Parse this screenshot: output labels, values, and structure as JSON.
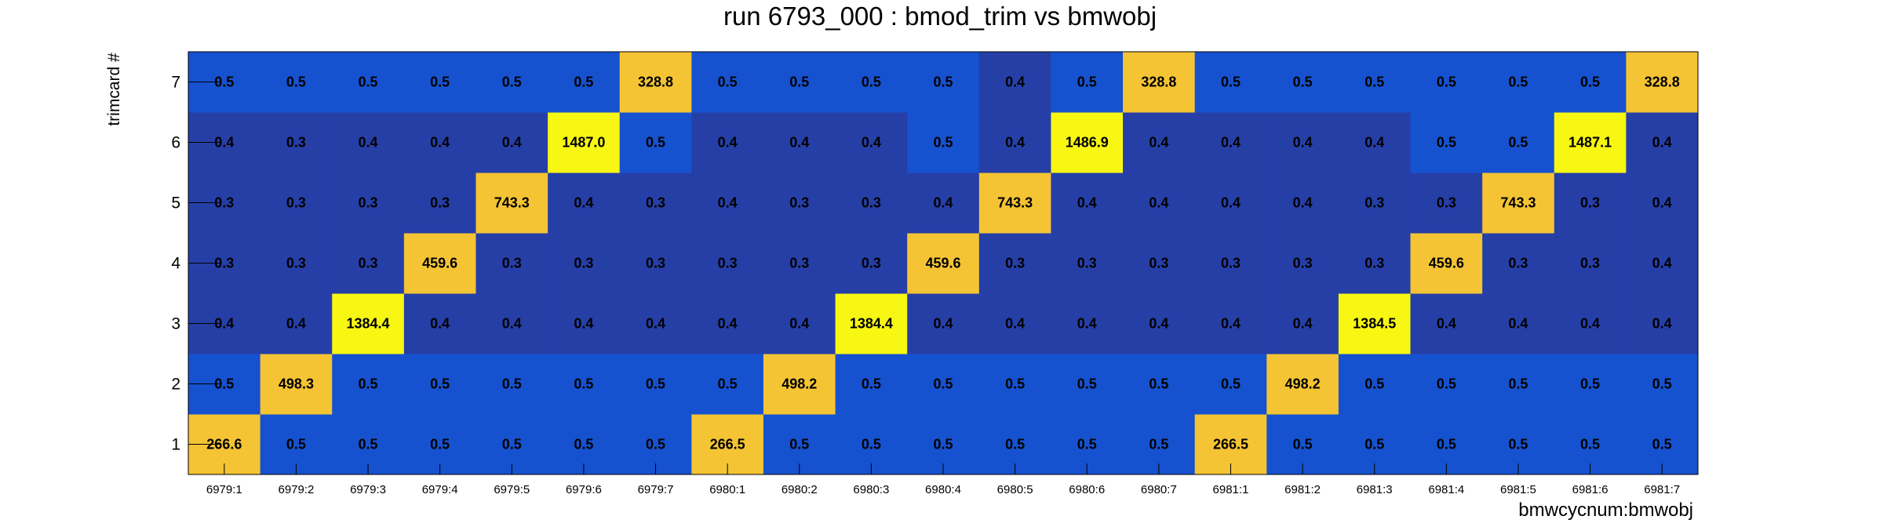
{
  "chart_data": {
    "type": "heatmap",
    "title": "run 6793_000 : bmod_trim vs bmwobj",
    "xlabel": "bmwcycnum:bmwobj",
    "ylabel": "trimcard #",
    "x_categories": [
      "6979:1",
      "6979:2",
      "6979:3",
      "6979:4",
      "6979:5",
      "6979:6",
      "6979:7",
      "6980:1",
      "6980:2",
      "6980:3",
      "6980:4",
      "6980:5",
      "6980:6",
      "6980:7",
      "6981:1",
      "6981:2",
      "6981:3",
      "6981:4",
      "6981:5",
      "6981:6",
      "6981:7"
    ],
    "y_categories": [
      "1",
      "2",
      "3",
      "4",
      "5",
      "6",
      "7"
    ],
    "values": [
      [
        "266.6",
        "0.5",
        "0.5",
        "0.5",
        "0.5",
        "0.5",
        "0.5",
        "266.5",
        "0.5",
        "0.5",
        "0.5",
        "0.5",
        "0.5",
        "0.5",
        "266.5",
        "0.5",
        "0.5",
        "0.5",
        "0.5",
        "0.5",
        "0.5"
      ],
      [
        "0.5",
        "498.3",
        "0.5",
        "0.5",
        "0.5",
        "0.5",
        "0.5",
        "0.5",
        "498.2",
        "0.5",
        "0.5",
        "0.5",
        "0.5",
        "0.5",
        "0.5",
        "498.2",
        "0.5",
        "0.5",
        "0.5",
        "0.5",
        "0.5"
      ],
      [
        "0.4",
        "0.4",
        "1384.4",
        "0.4",
        "0.4",
        "0.4",
        "0.4",
        "0.4",
        "0.4",
        "1384.4",
        "0.4",
        "0.4",
        "0.4",
        "0.4",
        "0.4",
        "0.4",
        "1384.5",
        "0.4",
        "0.4",
        "0.4",
        "0.4"
      ],
      [
        "0.3",
        "0.3",
        "0.3",
        "459.6",
        "0.3",
        "0.3",
        "0.3",
        "0.3",
        "0.3",
        "0.3",
        "459.6",
        "0.3",
        "0.3",
        "0.3",
        "0.3",
        "0.3",
        "0.3",
        "459.6",
        "0.3",
        "0.3",
        "0.4"
      ],
      [
        "0.3",
        "0.3",
        "0.3",
        "0.3",
        "743.3",
        "0.4",
        "0.3",
        "0.4",
        "0.3",
        "0.3",
        "0.4",
        "743.3",
        "0.4",
        "0.4",
        "0.4",
        "0.4",
        "0.3",
        "0.3",
        "743.3",
        "0.3",
        "0.4"
      ],
      [
        "0.4",
        "0.3",
        "0.4",
        "0.4",
        "0.4",
        "1487.0",
        "0.5",
        "0.4",
        "0.4",
        "0.4",
        "0.5",
        "0.4",
        "1486.9",
        "0.4",
        "0.4",
        "0.4",
        "0.4",
        "0.5",
        "0.5",
        "1487.1",
        "0.4"
      ],
      [
        "0.5",
        "0.5",
        "0.5",
        "0.5",
        "0.5",
        "0.5",
        "328.8",
        "0.5",
        "0.5",
        "0.5",
        "0.5",
        "0.4",
        "0.5",
        "328.8",
        "0.5",
        "0.5",
        "0.5",
        "0.5",
        "0.5",
        "0.5",
        "328.8"
      ]
    ],
    "colors": {
      "low": "#263fa7",
      "mid": "#1652cf",
      "high": "#f4c434",
      "peak": "#f7f713"
    }
  }
}
